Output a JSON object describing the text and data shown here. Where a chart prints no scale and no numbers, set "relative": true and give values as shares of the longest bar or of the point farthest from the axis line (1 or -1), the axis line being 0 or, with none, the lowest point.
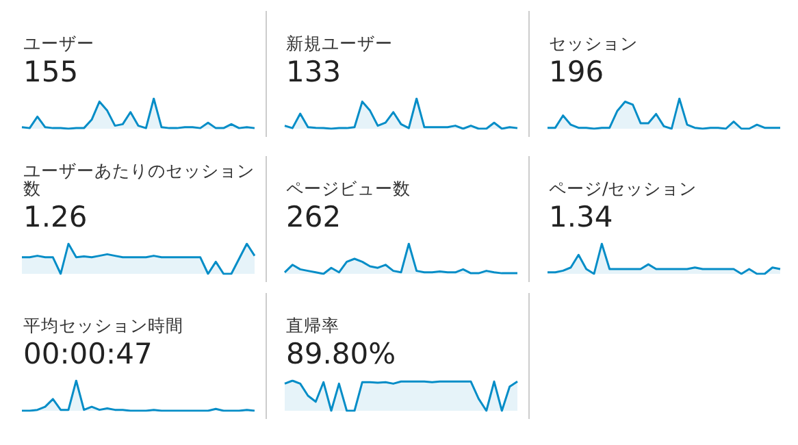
{
  "chart_data": [
    {
      "type": "area",
      "title": "ユーザー",
      "subtitle": "155",
      "relative": true,
      "marker": "none",
      "categories": [
        null,
        null,
        null,
        null,
        null,
        null,
        null,
        null,
        null,
        null,
        null,
        null,
        null,
        null,
        null,
        null,
        null,
        null,
        null,
        null,
        null,
        null,
        null,
        null,
        null,
        null,
        null,
        null,
        null,
        null,
        null
      ],
      "series": [
        {
          "color": "#058dc7",
          "values": [
            0.05,
            0.02,
            0.4,
            0.05,
            0.02,
            0.02,
            0,
            0.02,
            0.02,
            0.3,
            0.9,
            0.6,
            0.1,
            0.15,
            0.55,
            0.1,
            0.02,
            1,
            0.05,
            0.02,
            0.02,
            0.05,
            0.05,
            0.02,
            0.2,
            0.02,
            0.02,
            0.15,
            0.02,
            0.05,
            0.02
          ]
        }
      ]
    },
    {
      "type": "area",
      "title": "新規ユーザー",
      "subtitle": "133",
      "relative": true,
      "marker": "none",
      "categories": [
        null,
        null,
        null,
        null,
        null,
        null,
        null,
        null,
        null,
        null,
        null,
        null,
        null,
        null,
        null,
        null,
        null,
        null,
        null,
        null,
        null,
        null,
        null,
        null,
        null,
        null,
        null,
        null,
        null,
        null,
        null
      ],
      "series": [
        {
          "color": "#058dc7",
          "values": [
            0.1,
            0.02,
            0.5,
            0.05,
            0.03,
            0.02,
            0,
            0.02,
            0.02,
            0.05,
            0.9,
            0.6,
            0.1,
            0.2,
            0.55,
            0.15,
            0.02,
            1,
            0.05,
            0.05,
            0.05,
            0.05,
            0.1,
            0,
            0.1,
            0,
            0,
            0.2,
            0,
            0.05,
            0.02
          ]
        }
      ]
    },
    {
      "type": "area",
      "title": "セッション",
      "subtitle": "196",
      "relative": true,
      "marker": "none",
      "categories": [
        null,
        null,
        null,
        null,
        null,
        null,
        null,
        null,
        null,
        null,
        null,
        null,
        null,
        null,
        null,
        null,
        null,
        null,
        null,
        null,
        null,
        null,
        null,
        null,
        null,
        null,
        null,
        null,
        null,
        null,
        null
      ],
      "series": [
        {
          "color": "#058dc7",
          "values": [
            0.05,
            0.05,
            0.45,
            0.15,
            0.05,
            0.05,
            0.02,
            0.05,
            0.05,
            0.6,
            0.9,
            0.8,
            0.2,
            0.2,
            0.5,
            0.1,
            0.02,
            1,
            0.15,
            0.05,
            0.02,
            0.05,
            0.05,
            0.02,
            0.25,
            0.02,
            0.02,
            0.15,
            0.05,
            0.05,
            0.05
          ]
        }
      ]
    },
    {
      "type": "area",
      "title": "ユーザーあたりのセッション数",
      "subtitle": "1.26",
      "relative": true,
      "marker": "none",
      "categories": [
        null,
        null,
        null,
        null,
        null,
        null,
        null,
        null,
        null,
        null,
        null,
        null,
        null,
        null,
        null,
        null,
        null,
        null,
        null,
        null,
        null,
        null,
        null,
        null,
        null,
        null,
        null,
        null,
        null,
        null,
        null
      ],
      "series": [
        {
          "color": "#058dc7",
          "values": [
            0.55,
            0.55,
            0.6,
            0.55,
            0.55,
            0,
            1,
            0.55,
            0.58,
            0.55,
            0.6,
            0.65,
            0.6,
            0.55,
            0.55,
            0.55,
            0.55,
            0.6,
            0.55,
            0.55,
            0.55,
            0.55,
            0.55,
            0.55,
            0,
            0.4,
            0,
            0,
            0.5,
            1,
            0.6
          ]
        }
      ]
    },
    {
      "type": "area",
      "title": "ページビュー数",
      "subtitle": "262",
      "relative": true,
      "marker": "none",
      "categories": [
        null,
        null,
        null,
        null,
        null,
        null,
        null,
        null,
        null,
        null,
        null,
        null,
        null,
        null,
        null,
        null,
        null,
        null,
        null,
        null,
        null,
        null,
        null,
        null,
        null,
        null,
        null,
        null,
        null,
        null,
        null
      ],
      "series": [
        {
          "color": "#058dc7",
          "values": [
            0.05,
            0.3,
            0.15,
            0.1,
            0.05,
            0,
            0.2,
            0.05,
            0.4,
            0.5,
            0.4,
            0.25,
            0.2,
            0.3,
            0.1,
            0.05,
            1,
            0.1,
            0.05,
            0.05,
            0.08,
            0.05,
            0.05,
            0.15,
            0.02,
            0.02,
            0.1,
            0.05,
            0.02,
            0.02,
            0.02
          ]
        }
      ]
    },
    {
      "type": "area",
      "title": "ページ/セッション",
      "subtitle": "1.34",
      "relative": true,
      "marker": "none",
      "categories": [
        null,
        null,
        null,
        null,
        null,
        null,
        null,
        null,
        null,
        null,
        null,
        null,
        null,
        null,
        null,
        null,
        null,
        null,
        null,
        null,
        null,
        null,
        null,
        null,
        null,
        null,
        null,
        null,
        null,
        null,
        null
      ],
      "series": [
        {
          "color": "#058dc7",
          "values": [
            0.1,
            0.1,
            0.15,
            0.25,
            0.65,
            0.2,
            0.05,
            1,
            0.2,
            0.2,
            0.2,
            0.2,
            0.2,
            0.35,
            0.2,
            0.2,
            0.2,
            0.2,
            0.2,
            0.25,
            0.2,
            0.2,
            0.2,
            0.2,
            0.2,
            0.05,
            0.2,
            0.05,
            0.05,
            0.25,
            0.2
          ]
        }
      ]
    },
    {
      "type": "area",
      "title": "平均セッション時間",
      "subtitle": "00:00:47",
      "relative": true,
      "marker": "none",
      "categories": [
        null,
        null,
        null,
        null,
        null,
        null,
        null,
        null,
        null,
        null,
        null,
        null,
        null,
        null,
        null,
        null,
        null,
        null,
        null,
        null,
        null,
        null,
        null,
        null,
        null,
        null,
        null,
        null,
        null,
        null,
        null
      ],
      "series": [
        {
          "color": "#058dc7",
          "values": [
            0.02,
            0.02,
            0.05,
            0.15,
            0.4,
            0.05,
            0.05,
            1,
            0.05,
            0.15,
            0.05,
            0.1,
            0.05,
            0.05,
            0.02,
            0.02,
            0.02,
            0.05,
            0.02,
            0.02,
            0.02,
            0.02,
            0.02,
            0.02,
            0.02,
            0.08,
            0.02,
            0.02,
            0.02,
            0.05,
            0.02
          ]
        }
      ]
    },
    {
      "type": "area",
      "title": "直帰率",
      "subtitle": "89.80%",
      "relative": true,
      "marker": "none",
      "categories": [
        null,
        null,
        null,
        null,
        null,
        null,
        null,
        null,
        null,
        null,
        null,
        null,
        null,
        null,
        null,
        null,
        null,
        null,
        null,
        null,
        null,
        null,
        null,
        null,
        null,
        null,
        null,
        null,
        null,
        null,
        null
      ],
      "series": [
        {
          "color": "#058dc7",
          "values": [
            0.9,
            1,
            0.9,
            0.5,
            0.3,
            0.95,
            0,
            0.9,
            0,
            0,
            0.95,
            0.95,
            0.93,
            0.95,
            0.9,
            0.97,
            0.97,
            0.97,
            0.97,
            0.95,
            0.97,
            0.97,
            0.97,
            0.97,
            0.97,
            0.4,
            0,
            0.97,
            0,
            0.8,
            0.97
          ]
        }
      ]
    }
  ]
}
